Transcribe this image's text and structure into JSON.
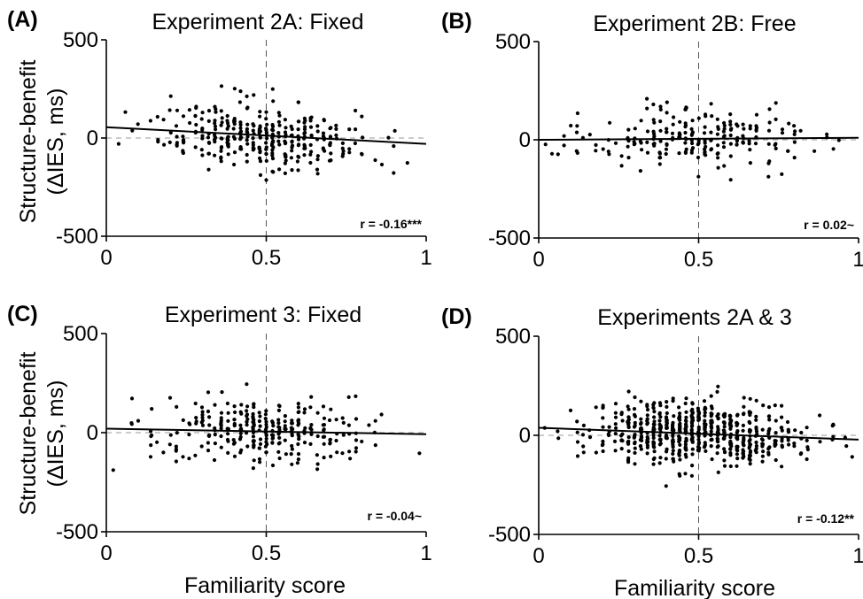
{
  "figure": {
    "shared_xlabel": "Familiarity score",
    "shared_ylabel_line1": "Structure-benefit",
    "shared_ylabel_line2": "(ΔIES, ms)"
  },
  "chart_data": [
    {
      "type": "scatter",
      "panel_label": "(A)",
      "title": "Experiment 2A: Fixed",
      "xlabel": "",
      "ylabel": "",
      "xlim": [
        0,
        1
      ],
      "ylim": [
        -500,
        500
      ],
      "xticks": [
        "0",
        "0.5",
        "1"
      ],
      "yticks": [
        "500",
        "0",
        "-500"
      ],
      "reference_lines": {
        "x": 0.5,
        "y": 0,
        "style": "dashed"
      },
      "regression_line": {
        "x": [
          0,
          1
        ],
        "y": [
          55,
          -30
        ]
      },
      "annotation": "r = -0.16***",
      "n_points": 330,
      "seed": 11,
      "x_mean": 0.5,
      "x_sd": 0.17,
      "y_sd": 82
    },
    {
      "type": "scatter",
      "panel_label": "(B)",
      "title": "Experiment 2B: Free",
      "xlabel": "",
      "ylabel": "",
      "xlim": [
        0,
        1
      ],
      "ylim": [
        -500,
        500
      ],
      "xticks": [
        "0",
        "0.5",
        "1"
      ],
      "yticks": [
        "500",
        "0",
        "-500"
      ],
      "reference_lines": {
        "x": 0.5,
        "y": 0,
        "style": "dashed"
      },
      "regression_line": {
        "x": [
          0,
          1
        ],
        "y": [
          0,
          10
        ]
      },
      "annotation": "r = 0.02~",
      "n_points": 220,
      "seed": 23,
      "x_mean": 0.5,
      "x_sd": 0.17,
      "y_sd": 72
    },
    {
      "type": "scatter",
      "panel_label": "(C)",
      "title": "Experiment 3: Fixed",
      "xlabel": "",
      "ylabel": "",
      "xlim": [
        0,
        1
      ],
      "ylim": [
        -500,
        500
      ],
      "xticks": [
        "0",
        "0.5",
        "1"
      ],
      "yticks": [
        "500",
        "0",
        "-500"
      ],
      "reference_lines": {
        "x": 0.5,
        "y": 0,
        "style": "dashed"
      },
      "regression_line": {
        "x": [
          0,
          1
        ],
        "y": [
          20,
          -8
        ]
      },
      "annotation": "r = -0.04~",
      "n_points": 290,
      "seed": 37,
      "x_mean": 0.5,
      "x_sd": 0.17,
      "y_sd": 78
    },
    {
      "type": "scatter",
      "panel_label": "(D)",
      "title": "Experiments 2A & 3",
      "xlabel": "",
      "ylabel": "",
      "xlim": [
        0,
        1
      ],
      "ylim": [
        -500,
        500
      ],
      "xticks": [
        "0",
        "0.5",
        "1"
      ],
      "yticks": [
        "500",
        "0",
        "-500"
      ],
      "reference_lines": {
        "x": 0.5,
        "y": 0,
        "style": "dashed"
      },
      "regression_line": {
        "x": [
          0,
          1
        ],
        "y": [
          38,
          -22
        ]
      },
      "annotation": "r = -0.12**",
      "n_points": 620,
      "seed": 53,
      "x_mean": 0.5,
      "x_sd": 0.17,
      "y_sd": 82
    }
  ]
}
